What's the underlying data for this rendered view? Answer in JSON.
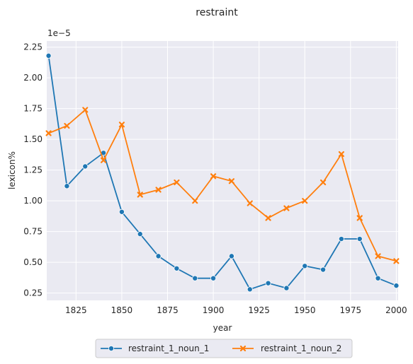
{
  "chart_data": {
    "type": "line",
    "title": "restraint",
    "xlabel": "year",
    "ylabel": "lexicon%",
    "y_scale_label": "1e−5",
    "x": [
      1810,
      1820,
      1830,
      1840,
      1850,
      1860,
      1870,
      1880,
      1890,
      1900,
      1910,
      1920,
      1930,
      1940,
      1950,
      1960,
      1970,
      1980,
      1990,
      2000
    ],
    "xlim": [
      1809,
      2001
    ],
    "ylim": [
      0.19,
      2.3
    ],
    "x_ticks": [
      1825,
      1850,
      1875,
      1900,
      1925,
      1950,
      1975,
      2000
    ],
    "x_tick_labels": [
      "1825",
      "1850",
      "1875",
      "1900",
      "1925",
      "1950",
      "1975",
      "2000"
    ],
    "y_ticks": [
      0.25,
      0.5,
      0.75,
      1.0,
      1.25,
      1.5,
      1.75,
      2.0,
      2.25
    ],
    "y_tick_labels": [
      "0.25",
      "0.50",
      "0.75",
      "1.00",
      "1.25",
      "1.50",
      "1.75",
      "2.00",
      "2.25"
    ],
    "grid": true,
    "legend_position": "bottom-center",
    "series": [
      {
        "name": "restraint_1_noun_1",
        "color": "#1f77b4",
        "marker": "circle",
        "values": [
          2.18,
          1.12,
          1.28,
          1.39,
          0.91,
          0.73,
          0.55,
          0.45,
          0.37,
          0.37,
          0.55,
          0.28,
          0.33,
          0.29,
          0.47,
          0.44,
          0.69,
          0.69,
          0.37,
          0.31
        ]
      },
      {
        "name": "restraint_1_noun_2",
        "color": "#ff7f0e",
        "marker": "x",
        "values": [
          1.55,
          1.61,
          1.74,
          1.33,
          1.62,
          1.05,
          1.09,
          1.15,
          1.0,
          1.2,
          1.16,
          0.98,
          0.86,
          0.94,
          1.0,
          1.15,
          1.38,
          0.86,
          0.55,
          0.51
        ]
      }
    ]
  }
}
